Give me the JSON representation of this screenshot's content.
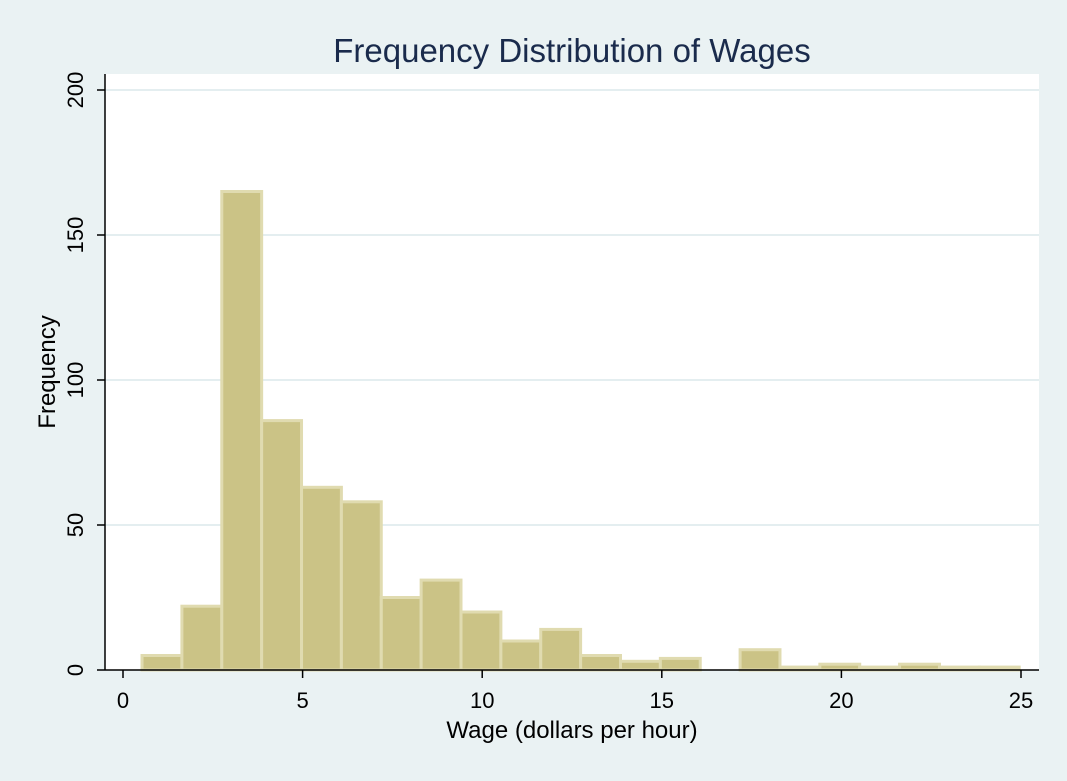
{
  "chart_data": {
    "type": "bar",
    "title": "Frequency Distribution of Wages",
    "xlabel": "Wage (dollars per hour)",
    "ylabel": "Frequency",
    "xlim": [
      0,
      25
    ],
    "ylim": [
      0,
      200
    ],
    "xticks": [
      "0",
      "5",
      "10",
      "15",
      "20",
      "25"
    ],
    "yticks": [
      "0",
      "50",
      "100",
      "150",
      "200"
    ],
    "grid": true,
    "bin_width": 1.11,
    "bins": [
      {
        "start": 0.53,
        "count": 5
      },
      {
        "start": 1.64,
        "count": 22
      },
      {
        "start": 2.75,
        "count": 165
      },
      {
        "start": 3.86,
        "count": 86
      },
      {
        "start": 4.97,
        "count": 63
      },
      {
        "start": 6.08,
        "count": 58
      },
      {
        "start": 7.19,
        "count": 25
      },
      {
        "start": 8.3,
        "count": 31
      },
      {
        "start": 9.41,
        "count": 20
      },
      {
        "start": 10.52,
        "count": 10
      },
      {
        "start": 11.63,
        "count": 14
      },
      {
        "start": 12.74,
        "count": 5
      },
      {
        "start": 13.85,
        "count": 3
      },
      {
        "start": 14.96,
        "count": 4
      },
      {
        "start": 16.07,
        "count": 0
      },
      {
        "start": 17.18,
        "count": 7
      },
      {
        "start": 18.29,
        "count": 1
      },
      {
        "start": 19.4,
        "count": 2
      },
      {
        "start": 20.51,
        "count": 1
      },
      {
        "start": 21.62,
        "count": 2
      },
      {
        "start": 22.73,
        "count": 1
      },
      {
        "start": 23.84,
        "count": 1
      }
    ],
    "colors": {
      "bar_fill": "#cbc386",
      "bar_edge": "#e0dbb0",
      "outer_background": "#eaf2f3",
      "plot_background": "#ffffff",
      "grid": "#e4eef0",
      "axis": "#000000",
      "title": "#1a2b4c"
    }
  }
}
